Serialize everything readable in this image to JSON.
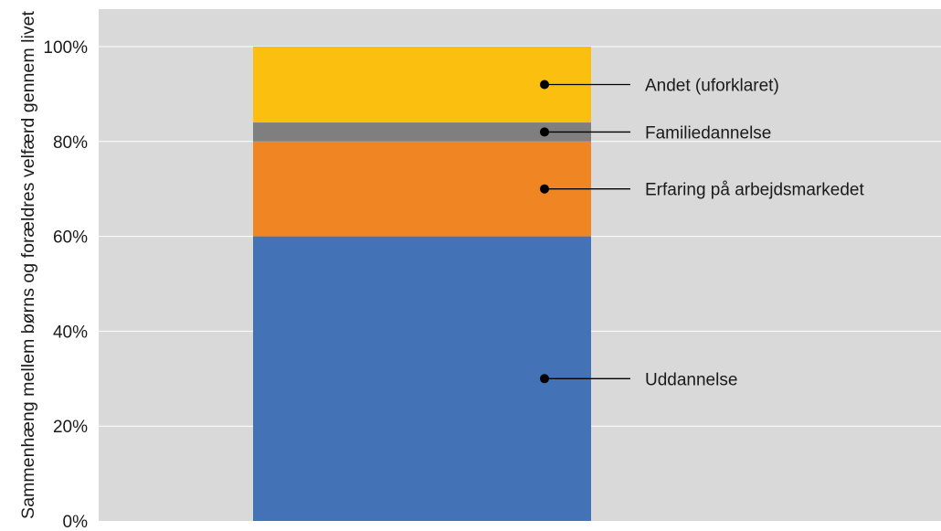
{
  "chart_data": {
    "type": "bar",
    "stacked": true,
    "ylabel": "Sammenhæng mellem børns og forældres velfærd gennem livet",
    "xlabel": "",
    "ylim": [
      0,
      100
    ],
    "yticks": [
      "0%",
      "20%",
      "40%",
      "60%",
      "80%",
      "100%"
    ],
    "ytick_values": [
      0,
      20,
      40,
      60,
      80,
      100
    ],
    "grid": true,
    "background": "#d9d9d9",
    "categories": [
      ""
    ],
    "series": [
      {
        "name": "Uddannelse",
        "values": [
          60
        ],
        "color": "#4472b6"
      },
      {
        "name": "Erfaring på arbejdsmarkedet",
        "values": [
          20
        ],
        "color": "#ef8523"
      },
      {
        "name": "Familiedannelse",
        "values": [
          4
        ],
        "color": "#7f7f7f"
      },
      {
        "name": "Andet (uforklaret)",
        "values": [
          16
        ],
        "color": "#fbbf0f"
      }
    ]
  }
}
